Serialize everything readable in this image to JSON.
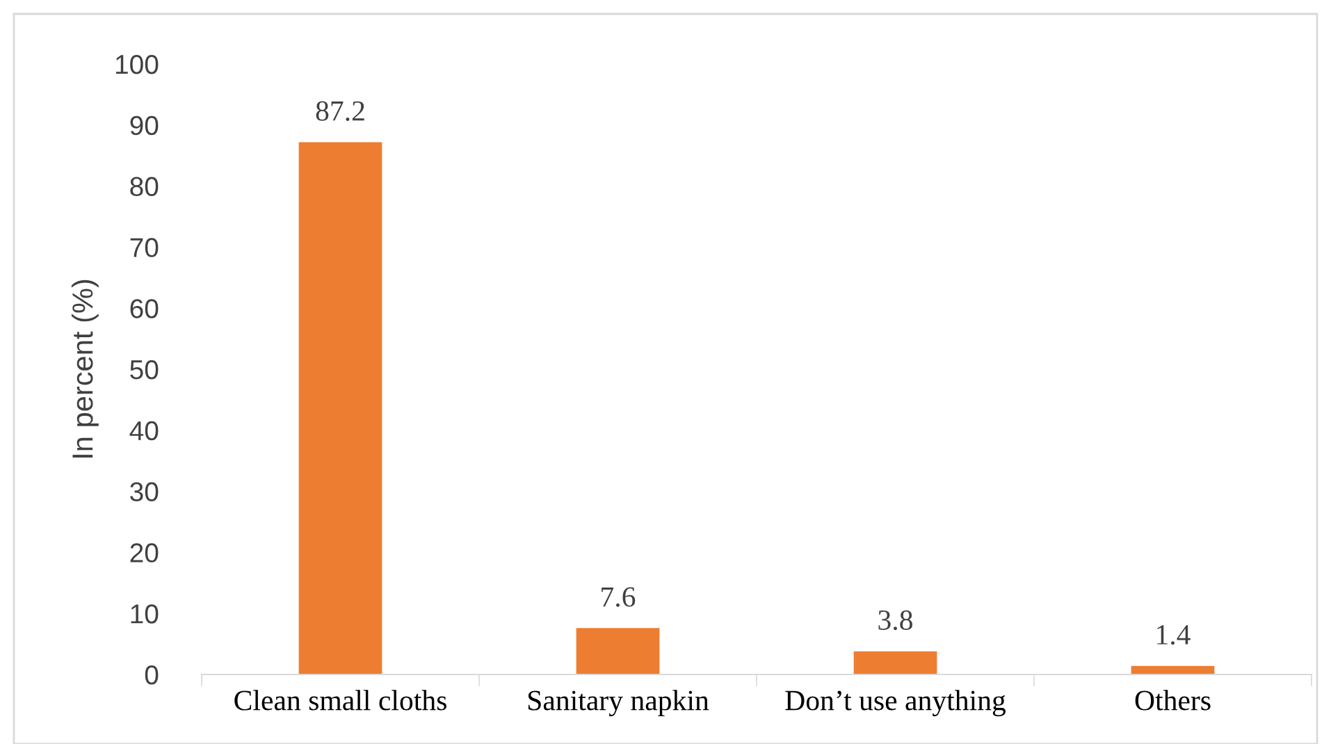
{
  "chart_data": {
    "type": "bar",
    "ylabel": "In percent (%)",
    "categories": [
      "Clean small cloths",
      "Sanitary napkin",
      "Don’t use anything",
      "Others"
    ],
    "values": [
      87.2,
      7.6,
      3.8,
      1.4
    ],
    "color": "#ed7d31",
    "ylim": [
      0,
      100
    ],
    "yticks": [
      0,
      10,
      20,
      30,
      40,
      50,
      60,
      70,
      80,
      90,
      100
    ],
    "data_labels": true,
    "grid": false,
    "legend": false
  }
}
